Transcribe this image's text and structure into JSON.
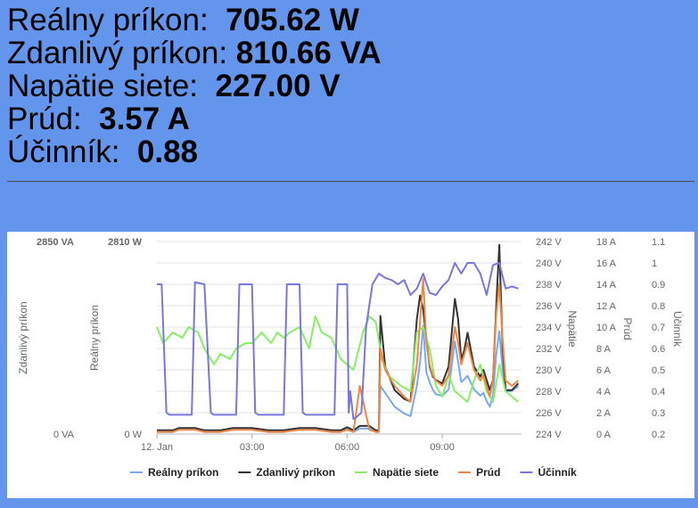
{
  "readings": [
    {
      "label": "Reálny príkon:",
      "value": "705.62 W"
    },
    {
      "label": "Zdanlivý príkon:",
      "value": "810.66 VA"
    },
    {
      "label": "Napätie siete:",
      "value": "227.00 V"
    },
    {
      "label": "Prúd:",
      "value": "3.57 A"
    },
    {
      "label": "Účinník:",
      "value": "0.88"
    }
  ],
  "chart_data": {
    "type": "line",
    "x_ticks": [
      "12. Jan",
      "03:00",
      "06:00",
      "09:00"
    ],
    "x_range_hours": [
      0,
      11.5
    ],
    "axes": [
      {
        "id": "va",
        "title": "Zdanlivý príkon",
        "ticks": [
          "0 VA",
          "2850 VA"
        ],
        "range": [
          0,
          2850
        ]
      },
      {
        "id": "w",
        "title": "Reálny príkon",
        "ticks": [
          "0 W",
          "2810 W"
        ],
        "range": [
          0,
          2810
        ]
      },
      {
        "id": "v",
        "title": "Napätie",
        "ticks": [
          "224 V",
          "226 V",
          "228 V",
          "230 V",
          "232 V",
          "234 V",
          "236 V",
          "238 V",
          "240 V",
          "242 V"
        ],
        "range": [
          224,
          242
        ]
      },
      {
        "id": "a",
        "title": "Prúd",
        "ticks": [
          "0 A",
          "2 A",
          "4 A",
          "6 A",
          "8 A",
          "10 A",
          "12 A",
          "14 A",
          "16 A",
          "18 A"
        ],
        "range": [
          0,
          18
        ]
      },
      {
        "id": "pf",
        "title": "Účinník",
        "ticks": [
          "0.2",
          "0.3",
          "0.4",
          "0.5",
          "0.6",
          "0.7",
          "0.8",
          "0.9",
          "1",
          "1.1"
        ],
        "range": [
          0.2,
          1.1
        ]
      }
    ],
    "legend_position": "bottom",
    "series": [
      {
        "name": "Reálny príkon",
        "axis": "w",
        "color": "#77aaee",
        "x": [
          0,
          0.5,
          0.7,
          1.2,
          1.5,
          2.0,
          2.4,
          3.0,
          3.5,
          4.0,
          4.5,
          5.0,
          5.5,
          5.8,
          6.0,
          6.2,
          6.4,
          6.7,
          6.9,
          7.0,
          7.05,
          7.2,
          7.5,
          7.8,
          8.0,
          8.2,
          8.3,
          8.4,
          8.5,
          8.6,
          8.7,
          8.8,
          9.0,
          9.2,
          9.4,
          9.5,
          9.6,
          9.7,
          9.8,
          10.0,
          10.2,
          10.3,
          10.4,
          10.5,
          10.6,
          10.7,
          10.8,
          10.9,
          11.0,
          11.2,
          11.4
        ],
        "y": [
          30,
          30,
          70,
          70,
          30,
          30,
          70,
          70,
          30,
          30,
          70,
          70,
          30,
          30,
          70,
          30,
          80,
          80,
          30,
          30,
          700,
          600,
          400,
          300,
          260,
          700,
          1050,
          1580,
          900,
          760,
          650,
          580,
          560,
          650,
          1350,
          1050,
          760,
          800,
          850,
          650,
          560,
          600,
          480,
          400,
          560,
          1150,
          1500,
          950,
          620,
          630,
          700
        ]
      },
      {
        "name": "Zdanlivý príkon",
        "axis": "va",
        "color": "#333333",
        "x": [
          0,
          0.5,
          0.7,
          1.2,
          1.5,
          2.0,
          2.4,
          3.0,
          3.5,
          4.0,
          4.5,
          5.0,
          5.5,
          5.8,
          6.0,
          6.2,
          6.4,
          6.7,
          6.9,
          7.0,
          7.05,
          7.2,
          7.5,
          7.8,
          8.0,
          8.2,
          8.3,
          8.4,
          8.5,
          8.6,
          8.7,
          8.8,
          9.0,
          9.2,
          9.4,
          9.5,
          9.6,
          9.7,
          9.8,
          10.0,
          10.2,
          10.3,
          10.4,
          10.5,
          10.6,
          10.7,
          10.8,
          10.9,
          11.0,
          11.2,
          11.4
        ],
        "y": [
          55,
          55,
          90,
          90,
          55,
          55,
          90,
          90,
          55,
          55,
          90,
          90,
          55,
          55,
          100,
          55,
          120,
          120,
          55,
          55,
          1750,
          1000,
          650,
          520,
          480,
          1700,
          2050,
          1850,
          1400,
          1000,
          850,
          800,
          750,
          1000,
          2000,
          1700,
          1100,
          1250,
          1500,
          1000,
          850,
          950,
          800,
          650,
          800,
          1850,
          2800,
          1300,
          650,
          650,
          750
        ]
      },
      {
        "name": "Napätie siete",
        "axis": "v",
        "color": "#88ee66",
        "x": [
          0,
          0.2,
          0.5,
          0.8,
          1.0,
          1.3,
          1.5,
          1.8,
          2.0,
          2.3,
          2.5,
          2.8,
          3.0,
          3.3,
          3.6,
          3.8,
          4.0,
          4.2,
          4.5,
          4.8,
          5.0,
          5.2,
          5.5,
          5.8,
          6.0,
          6.2,
          6.5,
          6.7,
          6.9,
          7.1,
          7.3,
          7.5,
          7.7,
          8.0,
          8.2,
          8.4,
          8.6,
          8.8,
          9.0,
          9.2,
          9.4,
          9.6,
          9.8,
          10.0,
          10.2,
          10.4,
          10.6,
          10.8,
          11.0,
          11.2,
          11.4
        ],
        "y": [
          234,
          232.5,
          233.5,
          233,
          234,
          233.5,
          232,
          230.5,
          231.5,
          231,
          232,
          232.5,
          232.5,
          233.5,
          232.5,
          233.5,
          233,
          233.5,
          234,
          232,
          235,
          233.5,
          233,
          231,
          230.5,
          230,
          233.5,
          235,
          234.5,
          231,
          229.5,
          229,
          228.5,
          228,
          233.5,
          234,
          232,
          228.5,
          227.5,
          229.5,
          228,
          227.5,
          227,
          229,
          230.5,
          228,
          227,
          230.5,
          228,
          227.5,
          227
        ]
      },
      {
        "name": "Prúd",
        "axis": "a",
        "color": "#ee8844",
        "x": [
          0,
          0.5,
          0.7,
          1.2,
          1.5,
          2.0,
          2.4,
          3.0,
          3.5,
          4.0,
          4.5,
          5.0,
          5.5,
          5.8,
          6.0,
          6.2,
          6.4,
          6.7,
          6.9,
          7.0,
          7.05,
          7.2,
          7.5,
          7.8,
          8.0,
          8.2,
          8.3,
          8.4,
          8.5,
          8.6,
          8.7,
          8.8,
          9.0,
          9.2,
          9.4,
          9.5,
          9.6,
          9.7,
          9.8,
          10.0,
          10.2,
          10.3,
          10.4,
          10.5,
          10.6,
          10.7,
          10.8,
          10.9,
          11.0,
          11.2,
          11.4
        ],
        "y": [
          0.2,
          0.2,
          0.4,
          0.4,
          0.2,
          0.2,
          0.4,
          0.4,
          0.2,
          0.2,
          0.4,
          0.4,
          0.2,
          0.2,
          0.4,
          0.2,
          4.5,
          0.4,
          0.2,
          0.2,
          8,
          6,
          4.5,
          3.5,
          3,
          6.5,
          10.5,
          14.5,
          8.5,
          6.5,
          5.5,
          5,
          4.5,
          5.5,
          10,
          8.5,
          6.5,
          7.5,
          8.5,
          6,
          5,
          5.5,
          4.5,
          3.5,
          5,
          11,
          14,
          9,
          5,
          4.5,
          5
        ]
      },
      {
        "name": "Účinník",
        "axis": "pf",
        "color": "#7777dd",
        "x": [
          0,
          0.15,
          0.3,
          0.4,
          0.9,
          1.1,
          1.2,
          1.5,
          1.7,
          1.8,
          2.3,
          2.5,
          2.6,
          3.0,
          3.1,
          3.2,
          3.8,
          4.0,
          4.1,
          4.5,
          4.6,
          4.7,
          5.4,
          5.6,
          5.7,
          6.0,
          6.05,
          6.1,
          6.2,
          6.3,
          6.45,
          6.6,
          6.8,
          7.0,
          7.2,
          7.4,
          7.6,
          7.8,
          8.0,
          8.2,
          8.4,
          8.6,
          8.8,
          9.0,
          9.2,
          9.4,
          9.6,
          9.8,
          10.0,
          10.2,
          10.4,
          10.6,
          10.8,
          11.0,
          11.2,
          11.4
        ],
        "y": [
          0.9,
          0.9,
          0.3,
          0.29,
          0.29,
          0.29,
          0.91,
          0.9,
          0.3,
          0.29,
          0.29,
          0.29,
          0.9,
          0.9,
          0.3,
          0.29,
          0.29,
          0.29,
          0.9,
          0.9,
          0.3,
          0.29,
          0.29,
          0.29,
          0.9,
          0.9,
          0.3,
          0.4,
          0.27,
          0.28,
          0.3,
          0.7,
          0.9,
          0.95,
          0.93,
          0.92,
          0.9,
          0.92,
          0.85,
          0.88,
          0.95,
          0.86,
          0.85,
          0.89,
          0.92,
          1.0,
          0.95,
          1.0,
          1.0,
          0.95,
          0.85,
          0.99,
          1.0,
          0.88,
          0.89,
          0.88
        ]
      }
    ]
  }
}
